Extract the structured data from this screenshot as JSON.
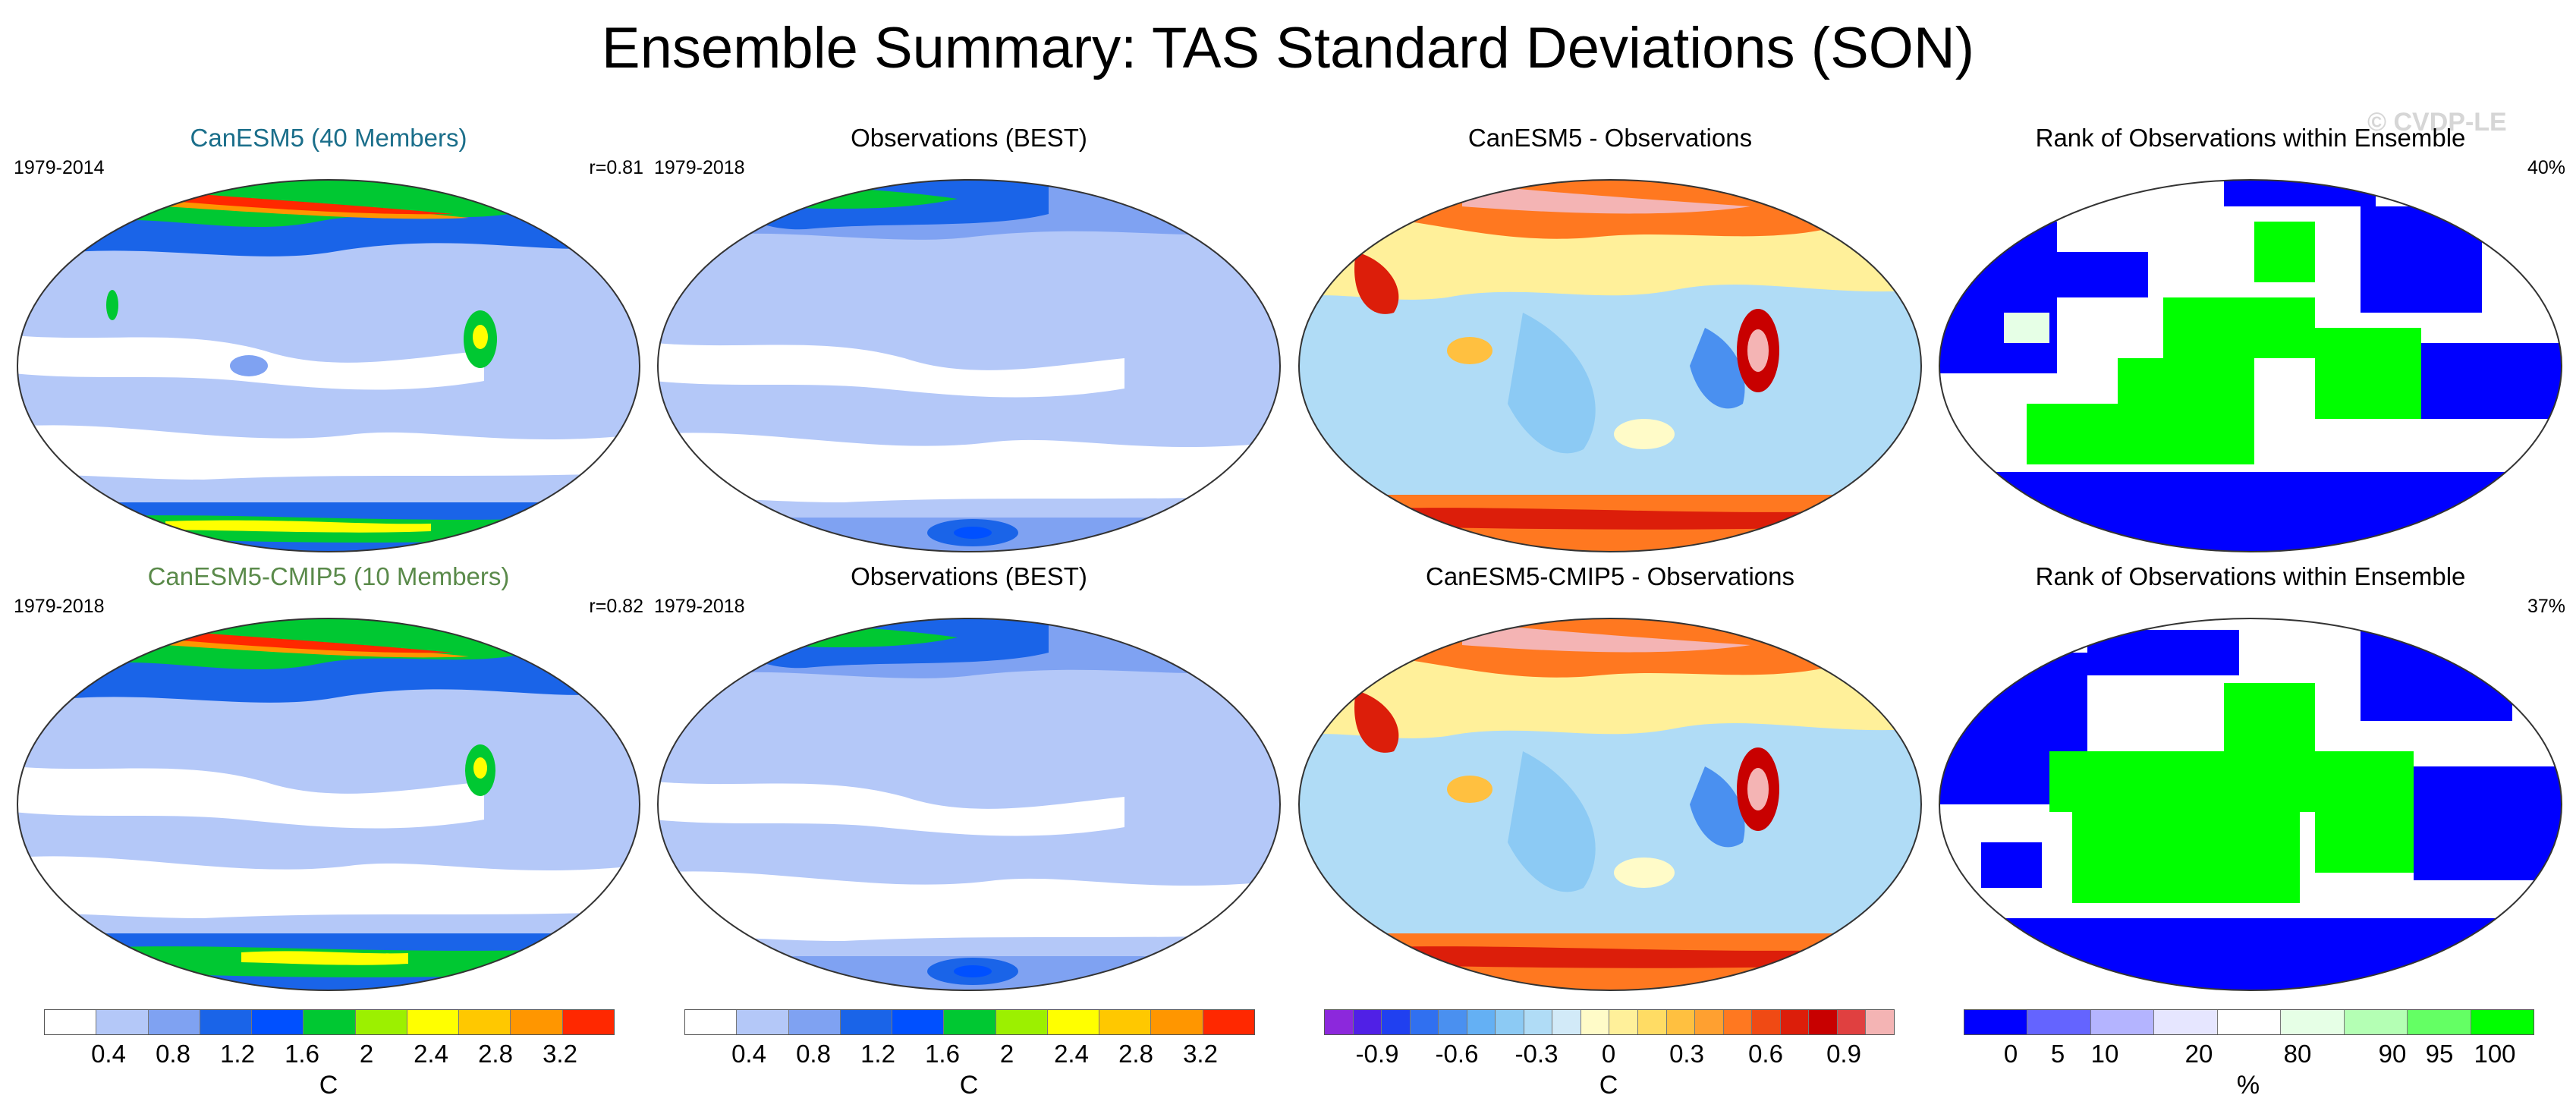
{
  "title": "Ensemble Summary: TAS Standard Deviations (SON)",
  "watermark": "© CVDP-LE",
  "colors": {
    "sd_scale": [
      "#ffffff",
      "#b4c8f8",
      "#7fa2f2",
      "#1a64e8",
      "#0050ff",
      "#00c832",
      "#9cf000",
      "#ffff00",
      "#ffc800",
      "#ff9600",
      "#ff2800"
    ],
    "diff_scale": [
      "#8c28dc",
      "#5020e6",
      "#2040f0",
      "#3070f0",
      "#4a90f0",
      "#64b0f4",
      "#8ccaf4",
      "#b0dcf6",
      "#d2eaf8",
      "#fffbc8",
      "#fff09a",
      "#ffdc64",
      "#ffc040",
      "#ffa030",
      "#ff7820",
      "#f04a14",
      "#dc1e0a",
      "#c80000",
      "#e04040",
      "#f4b4b4"
    ],
    "rank_scale": [
      "#0000ff",
      "#6464ff",
      "#b4b4ff",
      "#e6e6ff",
      "#ffffff",
      "#e6ffe6",
      "#b4ffb4",
      "#64ff64",
      "#00ff00"
    ]
  },
  "rows": [
    {
      "model": {
        "title": "CanESM5 (40 Members)",
        "period": "1979-2014",
        "corr": "r=0.81",
        "title_color": "#1a6e8a"
      },
      "obs": {
        "title": "Observations (BEST)",
        "period": "1979-2018"
      },
      "diff": {
        "title": "CanESM5 - Observations"
      },
      "rank": {
        "title": "Rank of Observations within Ensemble",
        "pct": "40%"
      }
    },
    {
      "model": {
        "title": "CanESM5-CMIP5 (10 Members)",
        "period": "1979-2018",
        "corr": "r=0.82",
        "title_color": "#5a8a4a"
      },
      "obs": {
        "title": "Observations (BEST)",
        "period": "1979-2018"
      },
      "diff": {
        "title": "CanESM5-CMIP5 - Observations"
      },
      "rank": {
        "title": "Rank of Observations within Ensemble",
        "pct": "37%"
      }
    }
  ],
  "colorbars": [
    {
      "unit": "C",
      "ticks": [
        "0.4",
        "0.8",
        "1.2",
        "1.6",
        "2",
        "2.4",
        "2.8",
        "3.2"
      ]
    },
    {
      "unit": "C",
      "ticks": [
        "0.4",
        "0.8",
        "1.2",
        "1.6",
        "2",
        "2.4",
        "2.8",
        "3.2"
      ]
    },
    {
      "unit": "C",
      "ticks": [
        "-0.9",
        "-0.6",
        "-0.3",
        "0",
        "0.3",
        "0.6",
        "0.9"
      ]
    },
    {
      "unit": "%",
      "ticks": [
        "0",
        "5",
        "10",
        "20",
        "80",
        "90",
        "95",
        "100"
      ]
    }
  ]
}
